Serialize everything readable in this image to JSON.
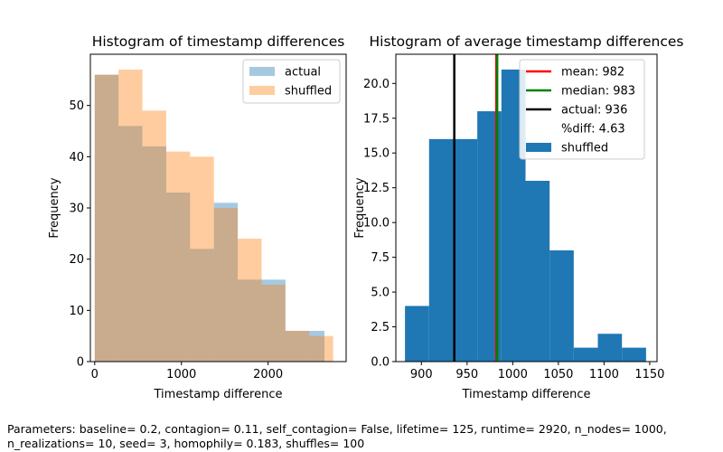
{
  "caption": "Parameters: baseline= 0.2, contagion= 0.11, self_contagion= False, lifetime= 125, runtime= 2920, n_nodes= 1000, n_realizations= 10, seed= 3, homophily= 0.183, shuffles= 100",
  "chart_data": [
    {
      "type": "bar",
      "title": "Histogram of timestamp differences",
      "xlabel": "Timestamp difference",
      "ylabel": "Frequency",
      "xlim": [
        -50,
        2900
      ],
      "ylim": [
        0,
        60
      ],
      "xticks": [
        0,
        1000,
        2000
      ],
      "yticks": [
        0,
        10,
        20,
        30,
        40,
        50
      ],
      "legend_position": "top-right",
      "series": [
        {
          "name": "actual",
          "color": "#1f77b4",
          "alpha": 0.4,
          "bin_edges": [
            0,
            275,
            550,
            825,
            1100,
            1375,
            1650,
            1925,
            2200,
            2475,
            2650
          ],
          "counts": [
            56,
            46,
            42,
            33,
            22,
            31,
            16,
            16,
            6,
            6
          ]
        },
        {
          "name": "shuffled",
          "color": "#ff7f0e",
          "alpha": 0.4,
          "bin_edges": [
            0,
            275,
            550,
            825,
            1100,
            1375,
            1650,
            1925,
            2200,
            2475,
            2750
          ],
          "counts": [
            56,
            57,
            49,
            41,
            40,
            30,
            24,
            15,
            6,
            5
          ]
        }
      ]
    },
    {
      "type": "bar",
      "title": "Histogram of average timestamp differences",
      "xlabel": "Timestamp difference",
      "ylabel": "Frequency",
      "xlim": [
        872,
        1158
      ],
      "ylim": [
        0,
        22.1
      ],
      "xticks": [
        900,
        950,
        1000,
        1050,
        1100,
        1150
      ],
      "yticks": [
        0.0,
        2.5,
        5.0,
        7.5,
        10.0,
        12.5,
        15.0,
        17.5,
        20.0
      ],
      "legend_position": "top-right",
      "series": [
        {
          "name": "shuffled",
          "color": "#1f77b4",
          "bin_edges": [
            882,
            908.4,
            934.8,
            961.2,
            987.6,
            1014,
            1040.4,
            1066.8,
            1093.2,
            1119.6,
            1146
          ],
          "counts": [
            4,
            16,
            16,
            18,
            21,
            13,
            8,
            1,
            2,
            1
          ]
        }
      ],
      "vlines": [
        {
          "label": "mean: 982",
          "x": 982,
          "color": "#ff0000"
        },
        {
          "label": "median: 983",
          "x": 983,
          "color": "#008000"
        },
        {
          "label": "actual: 936",
          "x": 936,
          "color": "#000000"
        }
      ],
      "legend_extra": "%diff: 4.63"
    }
  ]
}
